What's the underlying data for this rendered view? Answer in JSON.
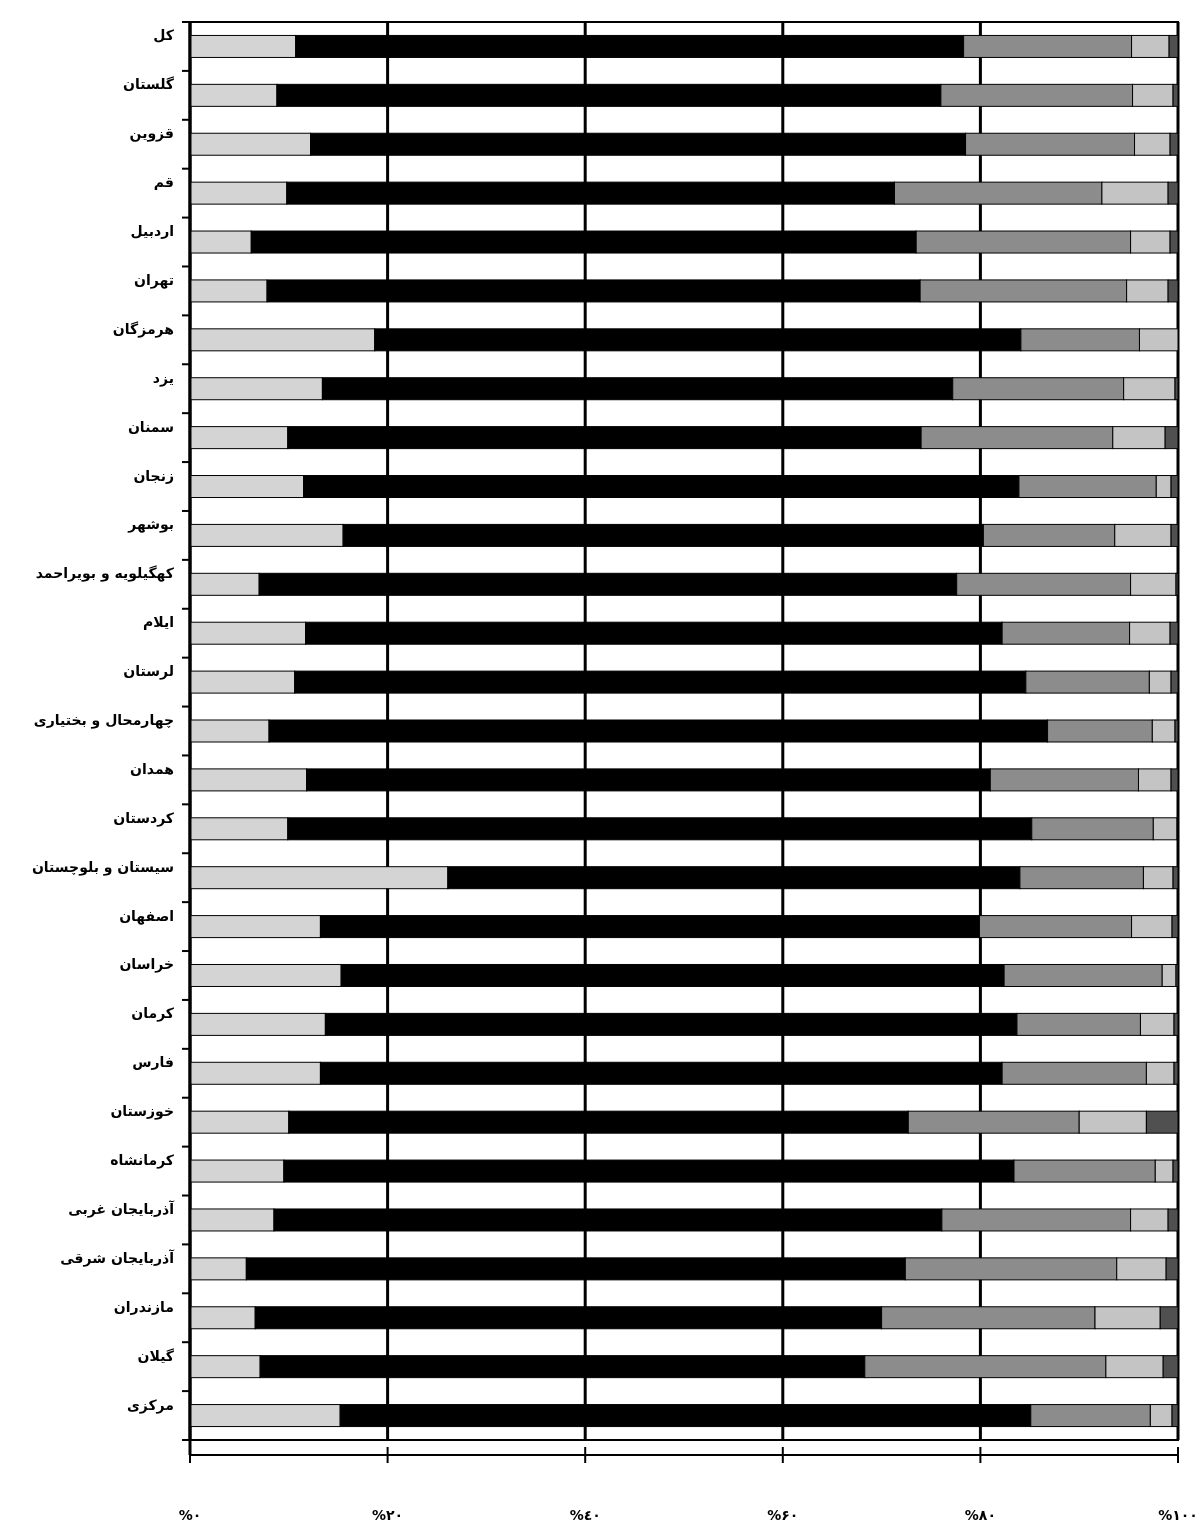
{
  "chart_data": {
    "type": "bar",
    "orientation": "horizontal",
    "stacked": true,
    "grid": "x",
    "categories": [
      "کل",
      "گلستان",
      "قزوین",
      "قم",
      "اردبیل",
      "تهران",
      "هرمزگان",
      "یزد",
      "سمنان",
      "زنجان",
      "بوشهر",
      "کهگیلویه و بویراحمد",
      "ایلام",
      "لرستان",
      "چهارمحال و بختیاری",
      "همدان",
      "کردستان",
      "سیستان و بلوچستان",
      "اصفهان",
      "خراسان",
      "کرمان",
      "فارس",
      "خوزستان",
      "کرمانشاه",
      "آذربایجان غربی",
      "آذربایجان شرقی",
      "مازندران",
      "گیلان",
      "مرکزی"
    ],
    "series": [
      {
        "color": "#d4d4d4",
        "values": [
          10.7,
          8.8,
          12.2,
          9.8,
          6.2,
          7.8,
          18.7,
          13.4,
          9.9,
          11.5,
          15.5,
          7.0,
          11.7,
          10.6,
          8.0,
          11.8,
          9.9,
          26.1,
          13.2,
          15.3,
          13.7,
          13.2,
          10.0,
          9.5,
          8.5,
          5.7,
          6.6,
          7.1,
          15.2
        ]
      },
      {
        "color": "#000000",
        "values": [
          67.6,
          67.2,
          66.3,
          61.5,
          67.3,
          66.1,
          65.4,
          63.8,
          64.1,
          72.4,
          64.8,
          70.6,
          70.5,
          74.0,
          78.8,
          69.2,
          75.3,
          57.9,
          66.7,
          67.1,
          70.0,
          69.0,
          62.7,
          73.9,
          67.6,
          66.7,
          63.4,
          61.2,
          69.9
        ]
      },
      {
        "color": "#8c8c8c",
        "values": [
          17.0,
          19.4,
          17.1,
          21.0,
          21.7,
          20.9,
          12.0,
          17.3,
          19.4,
          13.9,
          13.3,
          17.6,
          12.9,
          12.5,
          10.6,
          15.0,
          12.3,
          12.5,
          15.4,
          16.0,
          12.5,
          14.6,
          17.3,
          14.3,
          19.1,
          21.4,
          21.6,
          24.4,
          12.1
        ]
      },
      {
        "color": "#c4c4c4",
        "values": [
          3.8,
          4.1,
          3.6,
          6.7,
          4.0,
          4.2,
          3.9,
          5.2,
          5.3,
          1.5,
          5.7,
          4.6,
          4.1,
          2.2,
          2.3,
          3.3,
          2.4,
          3.0,
          4.1,
          1.4,
          3.4,
          2.8,
          6.8,
          1.8,
          3.8,
          5.0,
          6.6,
          5.8,
          2.2
        ]
      },
      {
        "color": "#505050",
        "values": [
          0.9,
          0.5,
          0.8,
          1.0,
          0.8,
          1.0,
          0.0,
          0.3,
          1.3,
          0.7,
          0.7,
          0.2,
          0.8,
          0.7,
          0.3,
          0.7,
          0.1,
          0.5,
          0.6,
          0.2,
          0.4,
          0.4,
          3.2,
          0.5,
          1.0,
          1.2,
          1.8,
          1.5,
          0.6
        ]
      }
    ],
    "xlim": [
      0,
      100
    ],
    "xticks": [
      {
        "value": 0,
        "label": "%۰"
      },
      {
        "value": 20,
        "label": "%۲۰"
      },
      {
        "value": 40,
        "label": "%٤۰"
      },
      {
        "value": 60,
        "label": "%۶۰"
      },
      {
        "value": 80,
        "label": "%۸۰"
      },
      {
        "value": 100,
        "label": "%۱۰۰"
      }
    ]
  }
}
